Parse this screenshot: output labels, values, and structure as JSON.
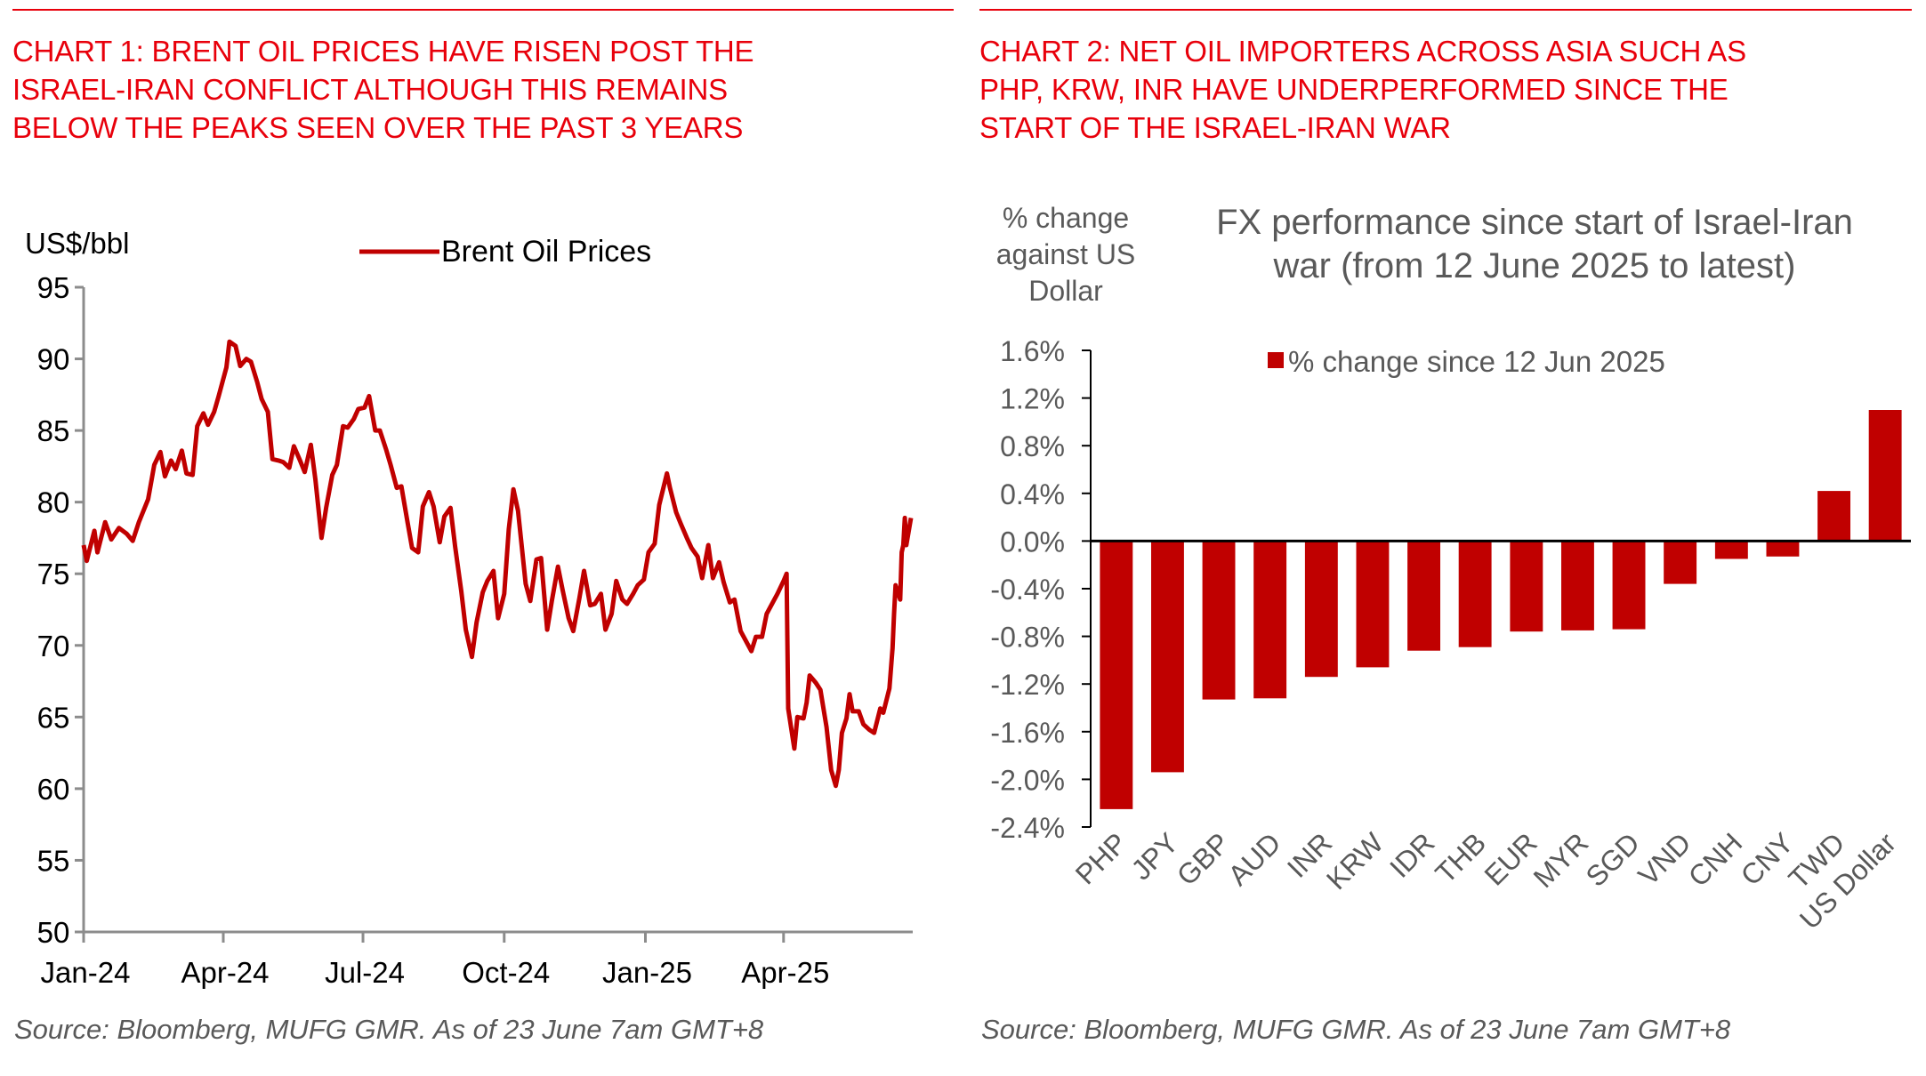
{
  "chart1": {
    "heading_lines": [
      "CHART 1: BRENT OIL PRICES HAVE RISEN POST THE",
      "ISRAEL-IRAN CONFLICT ALTHOUGH THIS REMAINS",
      "BELOW THE PEAKS SEEN OVER THE PAST 3 YEARS"
    ],
    "source": "Source: Bloomberg, MUFG GMR. As of 23 June 7am GMT+8"
  },
  "chart2": {
    "heading_lines": [
      "CHART 2: NET OIL IMPORTERS ACROSS ASIA SUCH AS",
      "PHP, KRW, INR HAVE UNDERPERFORMED SINCE THE",
      "START OF THE ISRAEL-IRAN WAR"
    ],
    "source": "Source: Bloomberg, MUFG GMR. As of 23 June 7am GMT+8"
  },
  "colors": {
    "heading": "#e8000b",
    "series": "#c00000",
    "axis": "#808080",
    "text": "#000000",
    "muted_text": "#595959"
  },
  "chart_data": [
    {
      "type": "line",
      "title": "",
      "ylabel": "US$/bbl",
      "xlabel": "",
      "ylim": [
        50,
        95
      ],
      "yticks": [
        "50",
        "55",
        "60",
        "65",
        "70",
        "75",
        "80",
        "85",
        "90",
        "95"
      ],
      "xticks": [
        {
          "label": "Jan-24",
          "date": "2024-01-01"
        },
        {
          "label": "Apr-24",
          "date": "2024-04-01"
        },
        {
          "label": "Jul-24",
          "date": "2024-07-01"
        },
        {
          "label": "Oct-24",
          "date": "2024-10-01"
        },
        {
          "label": "Jan-25",
          "date": "2025-01-01"
        },
        {
          "label": "Apr-25",
          "date": "2025-04-01"
        }
      ],
      "xlim": [
        "2024-01-01",
        "2025-06-23"
      ],
      "legend": {
        "position": "top-center",
        "entries": [
          "Brent Oil Prices"
        ]
      },
      "grid": false,
      "series": [
        {
          "name": "Brent Oil Prices",
          "points": [
            [
              "2024-01-01",
              77.0
            ],
            [
              "2024-01-03",
              75.9
            ],
            [
              "2024-01-08",
              78.0
            ],
            [
              "2024-01-10",
              76.5
            ],
            [
              "2024-01-15",
              78.6
            ],
            [
              "2024-01-19",
              77.4
            ],
            [
              "2024-01-24",
              78.2
            ],
            [
              "2024-01-29",
              77.8
            ],
            [
              "2024-02-02",
              77.3
            ],
            [
              "2024-02-06",
              78.6
            ],
            [
              "2024-02-12",
              80.2
            ],
            [
              "2024-02-16",
              82.6
            ],
            [
              "2024-02-20",
              83.5
            ],
            [
              "2024-02-23",
              81.8
            ],
            [
              "2024-02-27",
              82.9
            ],
            [
              "2024-03-01",
              82.3
            ],
            [
              "2024-03-05",
              83.6
            ],
            [
              "2024-03-08",
              82.0
            ],
            [
              "2024-03-12",
              81.9
            ],
            [
              "2024-03-15",
              85.3
            ],
            [
              "2024-03-19",
              86.2
            ],
            [
              "2024-03-22",
              85.4
            ],
            [
              "2024-03-26",
              86.3
            ],
            [
              "2024-03-29",
              87.4
            ],
            [
              "2024-04-03",
              89.4
            ],
            [
              "2024-04-05",
              91.2
            ],
            [
              "2024-04-09",
              90.9
            ],
            [
              "2024-04-12",
              89.5
            ],
            [
              "2024-04-16",
              90.0
            ],
            [
              "2024-04-19",
              89.8
            ],
            [
              "2024-04-23",
              88.4
            ],
            [
              "2024-04-26",
              87.2
            ],
            [
              "2024-04-30",
              86.3
            ],
            [
              "2024-05-03",
              83.0
            ],
            [
              "2024-05-07",
              82.9
            ],
            [
              "2024-05-10",
              82.8
            ],
            [
              "2024-05-14",
              82.4
            ],
            [
              "2024-05-17",
              83.9
            ],
            [
              "2024-05-21",
              82.9
            ],
            [
              "2024-05-24",
              82.1
            ],
            [
              "2024-05-28",
              84.0
            ],
            [
              "2024-05-31",
              81.6
            ],
            [
              "2024-06-04",
              77.5
            ],
            [
              "2024-06-07",
              79.6
            ],
            [
              "2024-06-11",
              81.9
            ],
            [
              "2024-06-14",
              82.6
            ],
            [
              "2024-06-18",
              85.3
            ],
            [
              "2024-06-21",
              85.2
            ],
            [
              "2024-06-25",
              85.8
            ],
            [
              "2024-06-28",
              86.5
            ],
            [
              "2024-07-02",
              86.6
            ],
            [
              "2024-07-05",
              87.4
            ],
            [
              "2024-07-09",
              85.0
            ],
            [
              "2024-07-12",
              85.0
            ],
            [
              "2024-07-16",
              83.7
            ],
            [
              "2024-07-19",
              82.6
            ],
            [
              "2024-07-23",
              81.0
            ],
            [
              "2024-07-26",
              81.1
            ],
            [
              "2024-07-30",
              78.6
            ],
            [
              "2024-08-02",
              76.8
            ],
            [
              "2024-08-06",
              76.5
            ],
            [
              "2024-08-09",
              79.7
            ],
            [
              "2024-08-13",
              80.7
            ],
            [
              "2024-08-16",
              79.7
            ],
            [
              "2024-08-20",
              77.2
            ],
            [
              "2024-08-23",
              79.0
            ],
            [
              "2024-08-27",
              79.6
            ],
            [
              "2024-08-30",
              76.9
            ],
            [
              "2024-09-03",
              73.8
            ],
            [
              "2024-09-06",
              71.1
            ],
            [
              "2024-09-10",
              69.2
            ],
            [
              "2024-09-13",
              71.6
            ],
            [
              "2024-09-17",
              73.7
            ],
            [
              "2024-09-20",
              74.5
            ],
            [
              "2024-09-24",
              75.2
            ],
            [
              "2024-09-27",
              71.9
            ],
            [
              "2024-10-01",
              73.6
            ],
            [
              "2024-10-04",
              78.1
            ],
            [
              "2024-10-07",
              80.9
            ],
            [
              "2024-10-10",
              79.4
            ],
            [
              "2024-10-15",
              74.3
            ],
            [
              "2024-10-18",
              73.1
            ],
            [
              "2024-10-22",
              76.0
            ],
            [
              "2024-10-25",
              76.1
            ],
            [
              "2024-10-29",
              71.1
            ],
            [
              "2024-11-01",
              73.1
            ],
            [
              "2024-11-05",
              75.5
            ],
            [
              "2024-11-08",
              73.9
            ],
            [
              "2024-11-12",
              71.9
            ],
            [
              "2024-11-15",
              71.0
            ],
            [
              "2024-11-19",
              73.3
            ],
            [
              "2024-11-22",
              75.2
            ],
            [
              "2024-11-26",
              72.8
            ],
            [
              "2024-11-29",
              72.9
            ],
            [
              "2024-12-03",
              73.6
            ],
            [
              "2024-12-06",
              71.1
            ],
            [
              "2024-12-10",
              72.2
            ],
            [
              "2024-12-13",
              74.5
            ],
            [
              "2024-12-17",
              73.2
            ],
            [
              "2024-12-20",
              72.9
            ],
            [
              "2024-12-24",
              73.6
            ],
            [
              "2024-12-27",
              74.2
            ],
            [
              "2024-12-31",
              74.6
            ],
            [
              "2025-01-03",
              76.5
            ],
            [
              "2025-01-07",
              77.1
            ],
            [
              "2025-01-10",
              79.8
            ],
            [
              "2025-01-15",
              82.0
            ],
            [
              "2025-01-17",
              81.0
            ],
            [
              "2025-01-21",
              79.3
            ],
            [
              "2025-01-24",
              78.5
            ],
            [
              "2025-01-28",
              77.5
            ],
            [
              "2025-01-31",
              76.8
            ],
            [
              "2025-02-04",
              76.2
            ],
            [
              "2025-02-07",
              74.7
            ],
            [
              "2025-02-11",
              77.0
            ],
            [
              "2025-02-14",
              74.7
            ],
            [
              "2025-02-18",
              75.8
            ],
            [
              "2025-02-21",
              74.4
            ],
            [
              "2025-02-25",
              73.0
            ],
            [
              "2025-02-28",
              73.2
            ],
            [
              "2025-03-04",
              71.0
            ],
            [
              "2025-03-07",
              70.4
            ],
            [
              "2025-03-11",
              69.6
            ],
            [
              "2025-03-14",
              70.6
            ],
            [
              "2025-03-18",
              70.6
            ],
            [
              "2025-03-21",
              72.2
            ],
            [
              "2025-03-25",
              73.0
            ],
            [
              "2025-03-28",
              73.6
            ],
            [
              "2025-04-01",
              74.5
            ],
            [
              "2025-04-03",
              75.0
            ],
            [
              "2025-04-04",
              65.6
            ],
            [
              "2025-04-08",
              62.8
            ],
            [
              "2025-04-10",
              65.0
            ],
            [
              "2025-04-14",
              64.9
            ],
            [
              "2025-04-16",
              66.0
            ],
            [
              "2025-04-18",
              67.9
            ],
            [
              "2025-04-22",
              67.4
            ],
            [
              "2025-04-25",
              66.9
            ],
            [
              "2025-04-29",
              64.3
            ],
            [
              "2025-05-02",
              61.3
            ],
            [
              "2025-05-05",
              60.2
            ],
            [
              "2025-05-07",
              61.3
            ],
            [
              "2025-05-09",
              63.9
            ],
            [
              "2025-05-12",
              64.9
            ],
            [
              "2025-05-14",
              66.6
            ],
            [
              "2025-05-16",
              65.4
            ],
            [
              "2025-05-20",
              65.4
            ],
            [
              "2025-05-23",
              64.5
            ],
            [
              "2025-05-27",
              64.1
            ],
            [
              "2025-05-30",
              63.9
            ],
            [
              "2025-06-03",
              65.6
            ],
            [
              "2025-06-05",
              65.3
            ],
            [
              "2025-06-09",
              67.0
            ],
            [
              "2025-06-11",
              69.8
            ],
            [
              "2025-06-12",
              72.2
            ],
            [
              "2025-06-13",
              74.2
            ],
            [
              "2025-06-16",
              73.2
            ],
            [
              "2025-06-17",
              76.5
            ],
            [
              "2025-06-18",
              77.0
            ],
            [
              "2025-06-19",
              78.9
            ],
            [
              "2025-06-20",
              77.0
            ],
            [
              "2025-06-23",
              78.9
            ]
          ]
        }
      ]
    },
    {
      "type": "bar",
      "title": "FX performance since start of Israel-Iran war (from 12 June 2025 to latest)",
      "title_lines": [
        "FX performance since start of Israel-Iran",
        "war (from 12 June 2025 to latest)"
      ],
      "ylabel": "% change against US Dollar",
      "ylabel_lines": [
        "% change",
        "against US",
        "Dollar"
      ],
      "xlabel": "",
      "ylim": [
        -2.4,
        1.6
      ],
      "yticks": [
        "-2.4%",
        "-2.0%",
        "-1.6%",
        "-1.2%",
        "-0.8%",
        "-0.4%",
        "0.0%",
        "0.4%",
        "0.8%",
        "1.2%",
        "1.6%"
      ],
      "ytick_values": [
        -2.4,
        -2.0,
        -1.6,
        -1.2,
        -0.8,
        -0.4,
        0.0,
        0.4,
        0.8,
        1.2,
        1.6
      ],
      "legend": {
        "position": "top-center",
        "entries": [
          "% change since 12 Jun 2025"
        ]
      },
      "grid": false,
      "categories": [
        "PHP",
        "JPY",
        "GBP",
        "AUD",
        "INR",
        "KRW",
        "IDR",
        "THB",
        "EUR",
        "MYR",
        "SGD",
        "VND",
        "CNH",
        "CNY",
        "TWD",
        "US Dollar"
      ],
      "series": [
        {
          "name": "% change since 12 Jun 2025",
          "values": [
            -2.25,
            -1.94,
            -1.33,
            -1.32,
            -1.14,
            -1.06,
            -0.92,
            -0.89,
            -0.76,
            -0.75,
            -0.74,
            -0.36,
            -0.15,
            -0.13,
            0.42,
            1.1
          ]
        }
      ]
    }
  ]
}
